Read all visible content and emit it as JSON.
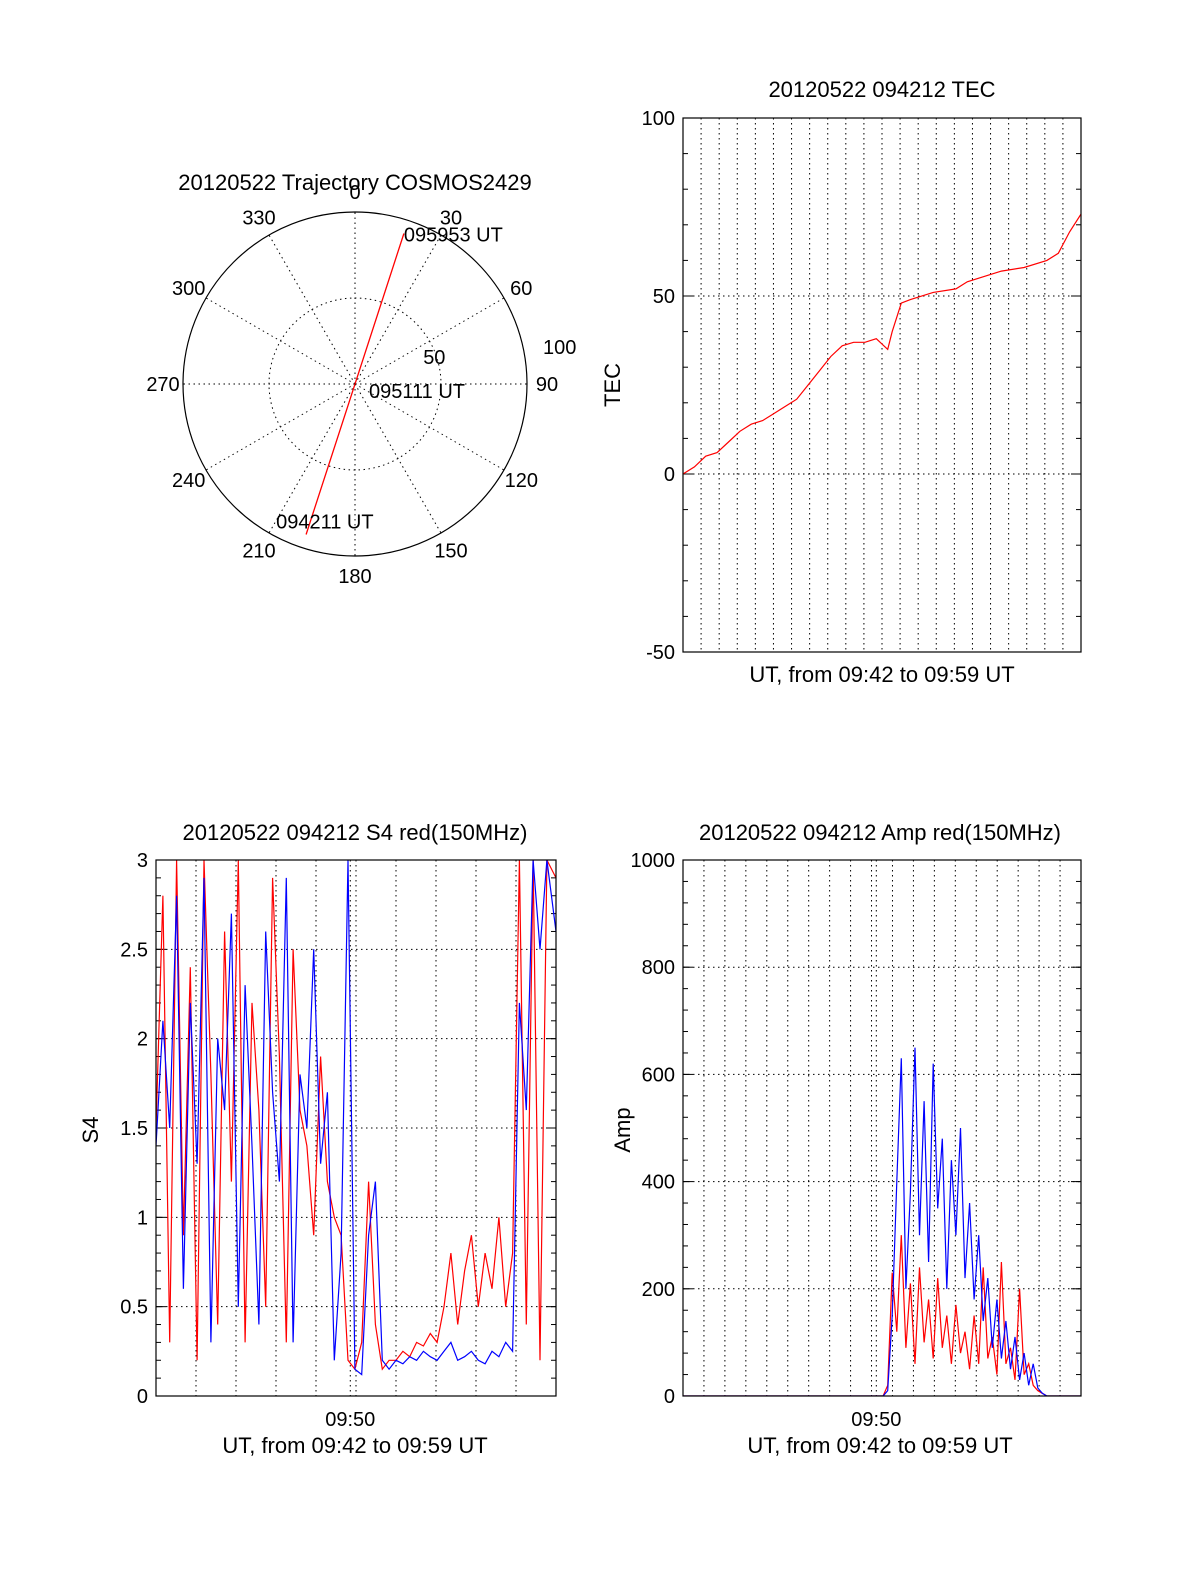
{
  "colors": {
    "red": "#ff0000",
    "blue": "#0000ff",
    "axis": "#000000"
  },
  "chart_data": [
    {
      "id": "trajectory",
      "type": "scatter",
      "title": "20120522 Trajectory COSMOS2429",
      "azimuth_labels": [
        "0",
        "30",
        "60",
        "90",
        "120",
        "150",
        "180",
        "210",
        "240",
        "270",
        "300",
        "330"
      ],
      "radial_labels": [
        "50",
        "100"
      ],
      "rlim": [
        0,
        100
      ],
      "series": [
        {
          "color": "#ff0000",
          "points": [
            {
              "az": 18,
              "r": 92
            },
            {
              "az": 198,
              "r": 92
            }
          ]
        }
      ],
      "annotations": [
        {
          "text": "095953 UT",
          "az": 18,
          "r": 92
        },
        {
          "text": "095111 UT",
          "az": 0,
          "r": 0
        },
        {
          "text": "094211 UT",
          "az": 198,
          "r": 92
        }
      ]
    },
    {
      "id": "tec",
      "type": "line",
      "title": "20120522 094212 TEC",
      "xlabel": "UT, from 09:42 to 09:59 UT",
      "ylabel": "TEC",
      "ylim": [
        -50,
        100
      ],
      "yticks": [
        "100",
        "50",
        "0",
        "-50"
      ],
      "xlim": [
        0,
        17.5
      ],
      "grid": true,
      "series": [
        {
          "color": "#ff0000",
          "x": [
            0,
            0.5,
            1,
            1.5,
            2,
            2.5,
            3,
            3.5,
            4,
            4.5,
            5,
            5.5,
            6,
            6.5,
            7,
            7.5,
            8,
            8.5,
            9,
            9.2,
            9.6,
            10,
            11,
            12,
            12.5,
            13,
            14,
            15,
            16,
            16.5,
            17,
            17.5
          ],
          "y": [
            0,
            2,
            5,
            6,
            9,
            12,
            14,
            15,
            17,
            19,
            21,
            25,
            29,
            33,
            36,
            37,
            37,
            38,
            35,
            40,
            48,
            49,
            51,
            52,
            54,
            55,
            57,
            58,
            60,
            62,
            68,
            73
          ]
        }
      ]
    },
    {
      "id": "s4",
      "type": "line",
      "title": "20120522 094212 S4 red(150MHz)",
      "xlabel": "UT, from 09:42 to 09:59 UT",
      "ylabel": "S4",
      "ylim": [
        0,
        3
      ],
      "yticks": [
        "3",
        "2.5",
        "2",
        "1.5",
        "1",
        "0.5",
        "0"
      ],
      "xtick_labels": [
        {
          "x": 8.5,
          "label": "09:50"
        }
      ],
      "xlim": [
        0,
        17.5
      ],
      "grid": true,
      "series": [
        {
          "color": "#ff0000",
          "x": [
            0,
            0.3,
            0.6,
            0.9,
            1.2,
            1.5,
            1.8,
            2.1,
            2.4,
            2.7,
            3,
            3.3,
            3.6,
            3.9,
            4.2,
            4.5,
            4.8,
            5.1,
            5.4,
            5.7,
            6,
            6.3,
            6.6,
            6.9,
            7.2,
            7.5,
            7.8,
            8.1,
            8.4,
            8.7,
            9,
            9.3,
            9.6,
            9.9,
            10.2,
            10.5,
            10.8,
            11.1,
            11.4,
            11.7,
            12,
            12.3,
            12.6,
            12.9,
            13.2,
            13.5,
            13.8,
            14.1,
            14.4,
            14.7,
            15,
            15.3,
            15.6,
            15.9,
            16.2,
            16.5,
            16.8,
            17.1,
            17.5
          ],
          "y": [
            1.5,
            2.8,
            0.3,
            3,
            0.9,
            2.4,
            0.2,
            3,
            1.8,
            0.4,
            2.6,
            1.2,
            3,
            0.3,
            2.2,
            1.6,
            0.5,
            2.9,
            1.9,
            0.3,
            2.5,
            1.6,
            1.4,
            0.9,
            1.9,
            1.2,
            1.0,
            0.9,
            0.2,
            0.15,
            0.3,
            1.2,
            0.4,
            0.15,
            0.2,
            0.2,
            0.25,
            0.22,
            0.3,
            0.28,
            0.35,
            0.3,
            0.5,
            0.8,
            0.4,
            0.7,
            0.9,
            0.5,
            0.8,
            0.6,
            1.0,
            0.5,
            0.8,
            3,
            0.4,
            3,
            0.2,
            3,
            2.9
          ]
        },
        {
          "color": "#0000ff",
          "x": [
            0,
            0.3,
            0.6,
            0.9,
            1.2,
            1.5,
            1.8,
            2.1,
            2.4,
            2.7,
            3,
            3.3,
            3.6,
            3.9,
            4.2,
            4.5,
            4.8,
            5.1,
            5.4,
            5.7,
            6,
            6.3,
            6.6,
            6.9,
            7.2,
            7.5,
            7.8,
            8.1,
            8.4,
            8.7,
            9,
            9.3,
            9.6,
            9.9,
            10.2,
            10.5,
            10.8,
            11.1,
            11.4,
            11.7,
            12,
            12.3,
            12.6,
            12.9,
            13.2,
            13.5,
            13.8,
            14.1,
            14.4,
            14.7,
            15,
            15.3,
            15.6,
            15.9,
            16.2,
            16.5,
            16.8,
            17.1,
            17.5
          ],
          "y": [
            1.4,
            2.1,
            1.5,
            2.8,
            0.6,
            2.2,
            1.3,
            2.9,
            0.3,
            2.0,
            1.6,
            2.7,
            0.5,
            2.3,
            1.4,
            0.4,
            2.6,
            1.7,
            1.2,
            2.9,
            0.3,
            1.8,
            1.5,
            2.5,
            1.3,
            1.7,
            0.2,
            0.8,
            3,
            0.15,
            0.12,
            0.9,
            1.2,
            0.2,
            0.15,
            0.2,
            0.18,
            0.22,
            0.2,
            0.25,
            0.22,
            0.2,
            0.25,
            0.3,
            0.2,
            0.22,
            0.25,
            0.2,
            0.18,
            0.25,
            0.22,
            0.3,
            0.25,
            2.2,
            1.6,
            3,
            2.5,
            3,
            2.6
          ]
        }
      ]
    },
    {
      "id": "amp",
      "type": "line",
      "title": "20120522 094212 Amp red(150MHz)",
      "xlabel": "UT, from 09:42 to 09:59 UT",
      "ylabel": "Amp",
      "ylim": [
        0,
        1000
      ],
      "yticks": [
        "1000",
        "800",
        "600",
        "400",
        "200",
        "0"
      ],
      "xtick_labels": [
        {
          "x": 8.5,
          "label": "09:50"
        }
      ],
      "xlim": [
        0,
        17.5
      ],
      "grid": true,
      "series": [
        {
          "color": "#ff0000",
          "x": [
            0,
            8.8,
            9.0,
            9.2,
            9.4,
            9.6,
            9.8,
            10.0,
            10.2,
            10.4,
            10.6,
            10.8,
            11.0,
            11.2,
            11.4,
            11.6,
            11.8,
            12.0,
            12.2,
            12.4,
            12.6,
            12.8,
            13.0,
            13.2,
            13.4,
            13.6,
            13.8,
            14.0,
            14.2,
            14.4,
            14.6,
            14.8,
            15.0,
            15.2,
            15.4,
            15.6,
            15.8,
            16.0,
            17.5
          ],
          "y": [
            0,
            0,
            20,
            230,
            120,
            300,
            90,
            210,
            60,
            240,
            100,
            180,
            70,
            220,
            90,
            150,
            60,
            170,
            80,
            120,
            50,
            150,
            60,
            240,
            70,
            110,
            40,
            250,
            60,
            90,
            30,
            200,
            40,
            60,
            20,
            10,
            5,
            0,
            0
          ]
        },
        {
          "color": "#0000ff",
          "x": [
            0,
            8.8,
            9.0,
            9.2,
            9.4,
            9.6,
            9.8,
            10.0,
            10.2,
            10.4,
            10.6,
            10.8,
            11.0,
            11.2,
            11.4,
            11.6,
            11.8,
            12.0,
            12.2,
            12.4,
            12.6,
            12.8,
            13.0,
            13.2,
            13.4,
            13.6,
            13.8,
            14.0,
            14.2,
            14.4,
            14.6,
            14.8,
            15.0,
            15.2,
            15.4,
            15.6,
            15.8,
            16.0,
            17.5
          ],
          "y": [
            0,
            0,
            10,
            150,
            400,
            630,
            200,
            380,
            650,
            300,
            550,
            250,
            620,
            350,
            480,
            200,
            440,
            300,
            500,
            220,
            360,
            180,
            300,
            140,
            220,
            90,
            180,
            70,
            140,
            50,
            110,
            30,
            80,
            20,
            60,
            15,
            5,
            0,
            0
          ]
        }
      ]
    }
  ]
}
